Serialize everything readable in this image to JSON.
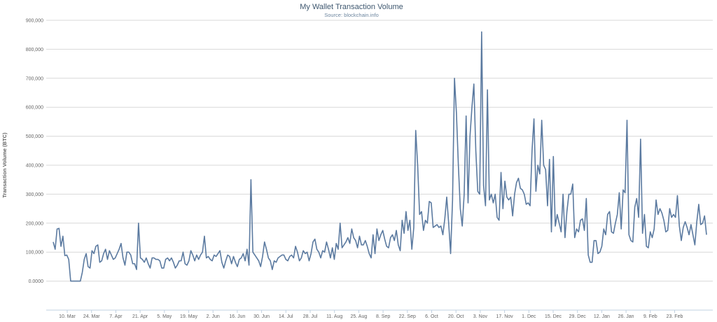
{
  "chart_data": {
    "type": "line",
    "title": "My Wallet Transaction Volume",
    "subtitle": "Source: blockchain.info",
    "ylabel": "Transaction Volume (BTC)",
    "xlabel": "",
    "ylim": [
      0,
      900000
    ],
    "yticks": [
      0,
      100000,
      200000,
      300000,
      400000,
      500000,
      600000,
      700000,
      800000,
      900000
    ],
    "ytick_labels": [
      "0.0000",
      "100,000",
      "200,000",
      "300,000",
      "400,000",
      "500,000",
      "600,000",
      "700,000",
      "800,000",
      "900,000"
    ],
    "xtick_labels": [
      "10. Mar",
      "24. Mar",
      "7. Apr",
      "21. Apr",
      "5. May",
      "19. May",
      "2. Jun",
      "16. Jun",
      "30. Jun",
      "14. Jul",
      "28. Jul",
      "11. Aug",
      "25. Aug",
      "8. Sep",
      "22. Sep",
      "6. Oct",
      "20. Oct",
      "3. Nov",
      "17. Nov",
      "1. Dec",
      "15. Dec",
      "29. Dec",
      "12. Jan",
      "26. Jan",
      "9. Feb",
      "23. Feb"
    ],
    "grid": true,
    "legend": "none",
    "colors": {
      "line": "#5b7aa0",
      "grid": "#d8d8d8",
      "title": "#3e576f",
      "subtitle": "#6d869f",
      "axis_text": "#666666"
    },
    "series": [
      {
        "values": [
          135000,
          110000,
          180000,
          182000,
          120000,
          155000,
          88000,
          90000,
          75000,
          0,
          0,
          0,
          0,
          0,
          0,
          30000,
          75000,
          95000,
          50000,
          45000,
          105000,
          95000,
          120000,
          125000,
          65000,
          70000,
          95000,
          110000,
          75000,
          105000,
          90000,
          75000,
          80000,
          95000,
          110000,
          130000,
          80000,
          55000,
          100000,
          100000,
          90000,
          60000,
          60000,
          40000,
          200000,
          80000,
          75000,
          65000,
          80000,
          60000,
          45000,
          80000,
          80000,
          75000,
          75000,
          70000,
          45000,
          45000,
          75000,
          80000,
          70000,
          80000,
          65000,
          45000,
          55000,
          70000,
          70000,
          100000,
          60000,
          55000,
          70000,
          105000,
          90000,
          70000,
          90000,
          75000,
          90000,
          100000,
          155000,
          80000,
          85000,
          75000,
          70000,
          90000,
          85000,
          95000,
          105000,
          65000,
          45000,
          70000,
          90000,
          85000,
          60000,
          85000,
          65000,
          50000,
          75000,
          80000,
          95000,
          70000,
          110000,
          55000,
          350000,
          100000,
          90000,
          80000,
          70000,
          50000,
          85000,
          135000,
          110000,
          80000,
          70000,
          40000,
          70000,
          65000,
          80000,
          85000,
          90000,
          90000,
          75000,
          70000,
          85000,
          90000,
          80000,
          120000,
          100000,
          70000,
          80000,
          105000,
          95000,
          100000,
          70000,
          95000,
          135000,
          145000,
          110000,
          100000,
          80000,
          105000,
          100000,
          135000,
          110000,
          80000,
          115000,
          75000,
          130000,
          110000,
          200000,
          115000,
          125000,
          135000,
          150000,
          130000,
          180000,
          150000,
          140000,
          115000,
          155000,
          125000,
          125000,
          140000,
          120000,
          95000,
          80000,
          160000,
          95000,
          180000,
          140000,
          160000,
          175000,
          145000,
          120000,
          115000,
          150000,
          160000,
          140000,
          175000,
          125000,
          105000,
          210000,
          165000,
          240000,
          175000,
          210000,
          110000,
          185000,
          520000,
          400000,
          230000,
          240000,
          175000,
          210000,
          200000,
          275000,
          270000,
          185000,
          190000,
          195000,
          185000,
          190000,
          160000,
          215000,
          290000,
          200000,
          95000,
          280000,
          700000,
          580000,
          400000,
          250000,
          190000,
          300000,
          570000,
          270000,
          500000,
          600000,
          680000,
          450000,
          310000,
          300000,
          860000,
          330000,
          260000,
          660000,
          280000,
          300000,
          270000,
          300000,
          220000,
          210000,
          375000,
          250000,
          345000,
          290000,
          280000,
          290000,
          225000,
          300000,
          340000,
          355000,
          320000,
          315000,
          300000,
          265000,
          270000,
          260000,
          450000,
          560000,
          310000,
          400000,
          370000,
          555000,
          400000,
          385000,
          260000,
          420000,
          170000,
          430000,
          190000,
          230000,
          200000,
          170000,
          300000,
          150000,
          240000,
          300000,
          300000,
          335000,
          150000,
          180000,
          170000,
          210000,
          215000,
          175000,
          285000,
          90000,
          65000,
          65000,
          140000,
          140000,
          95000,
          100000,
          120000,
          180000,
          160000,
          230000,
          240000,
          170000,
          165000,
          200000,
          230000,
          305000,
          180000,
          315000,
          305000,
          555000,
          160000,
          140000,
          135000,
          255000,
          285000,
          220000,
          490000,
          165000,
          230000,
          120000,
          115000,
          170000,
          150000,
          180000,
          280000,
          230000,
          250000,
          235000,
          210000,
          170000,
          175000,
          250000,
          220000,
          230000,
          220000,
          295000,
          190000,
          140000,
          185000,
          205000,
          185000,
          160000,
          195000,
          160000,
          125000,
          205000,
          265000,
          195000,
          200000,
          225000,
          160000
        ]
      }
    ]
  }
}
